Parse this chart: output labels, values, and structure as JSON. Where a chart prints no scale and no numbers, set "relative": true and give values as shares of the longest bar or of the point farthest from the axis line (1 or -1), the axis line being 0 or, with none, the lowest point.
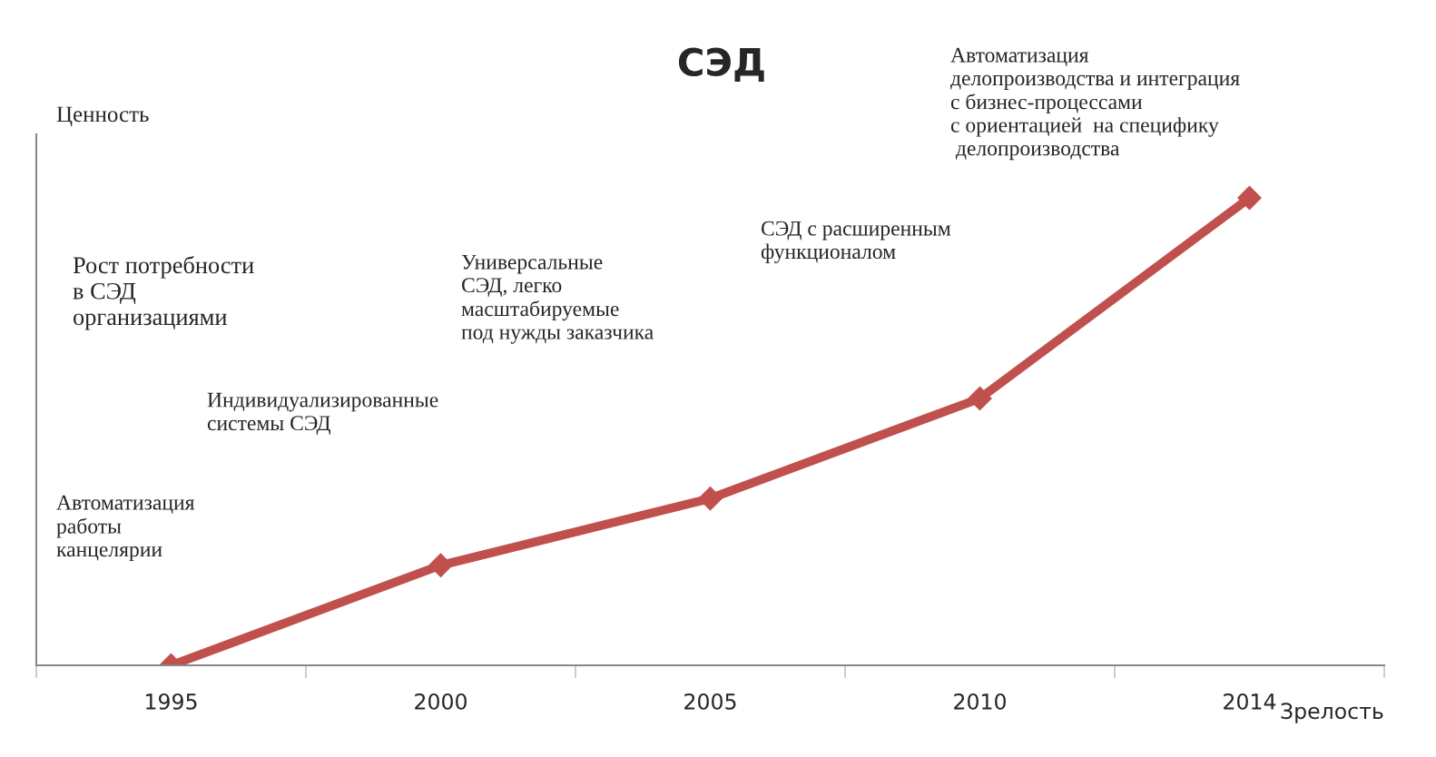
{
  "chart_data": {
    "type": "line",
    "title": "СЭД",
    "xlabel": "Зрелость",
    "ylabel": "Ценность",
    "categories": [
      "1995",
      "2000",
      "2005",
      "2010",
      "2014"
    ],
    "relative": true,
    "series": [
      {
        "color": "#c0504d",
        "values": [
          0,
          0.214,
          0.357,
          0.571,
          1
        ]
      }
    ],
    "marker": "diamond",
    "line_style": "solid",
    "annotations": [
      "Автоматизация\nработы\nканцелярии",
      "Индивидуализированные\nсистемы СЭД",
      "Рост потребности\nв СЭД\nорганизациями",
      "Универсальные\nСЭД, легко\nмасштабируемые\nпод нужды заказчика",
      "СЭД с расширенным\nфункционалом",
      "Автоматизация\nделопроизводства и интеграция\nс бизнес-процессами\nс ориентацией  на специфику\n делопроизводства"
    ]
  }
}
